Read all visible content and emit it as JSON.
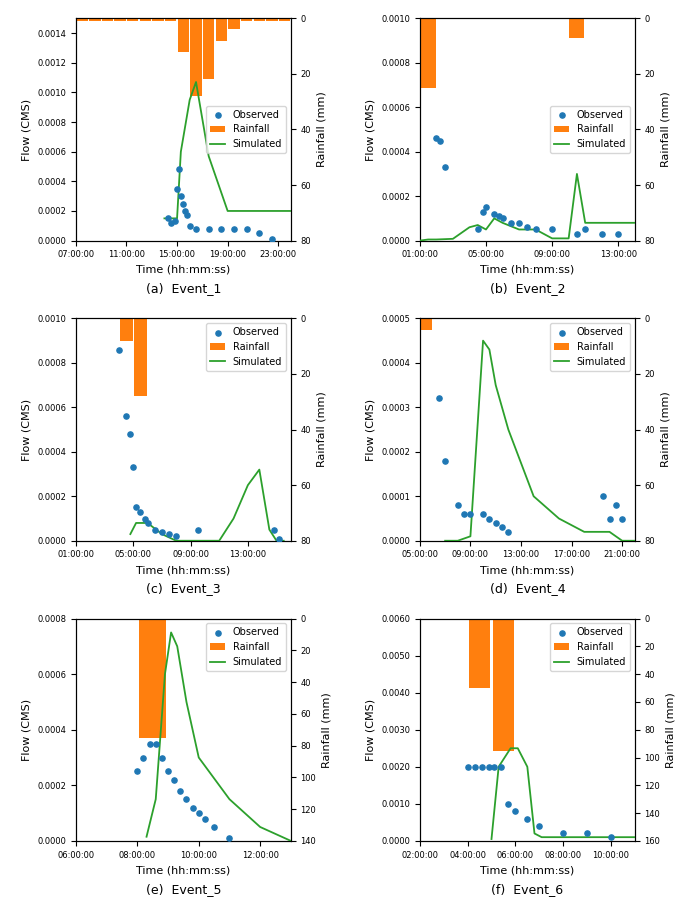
{
  "chart_data": [
    {
      "type": "line",
      "title": "(a)  Event_1",
      "x_label": "Time (hh:mm:ss)",
      "y_label": "Flow (CMS)",
      "y2_label": "Rainfall (mm)",
      "xlim": [
        0,
        17
      ],
      "xticks": [
        {
          "value": 0,
          "label": "07:00:00"
        },
        {
          "value": 4,
          "label": "11:00:00"
        },
        {
          "value": 8,
          "label": "15:00:00"
        },
        {
          "value": 12,
          "label": "19:00:00"
        },
        {
          "value": 16,
          "label": "23:00:00"
        }
      ],
      "ylim": [
        0,
        0.0015
      ],
      "yticks": [
        {
          "value": 0.0,
          "label": "0.0000"
        },
        0.0002,
        0.0004,
        0.0006,
        0.0008,
        {
          "value": 0.001,
          "label": "0.0010"
        },
        0.0012,
        0.0014
      ],
      "y2lim": [
        80,
        0
      ],
      "y2ticks": [
        0,
        20,
        40,
        60,
        80
      ],
      "legend": "center right",
      "grid": false,
      "series": [
        {
          "name": "Observed",
          "type": "scatter",
          "x": [
            7.3,
            7.5,
            7.8,
            8.0,
            8.15,
            8.3,
            8.45,
            8.6,
            8.75,
            9.0,
            9.5,
            10.5,
            11.5,
            12.5,
            13.5,
            14.5,
            15.5
          ],
          "values": [
            0.00015,
            0.00012,
            0.00013,
            0.00035,
            0.00048,
            0.0003,
            0.00025,
            0.0002,
            0.00017,
            0.0001,
            8e-05,
            8e-05,
            8e-05,
            8e-05,
            8e-05,
            5e-05,
            1e-05
          ]
        },
        {
          "name": "Rainfall",
          "type": "bar",
          "axis": "y2",
          "x": [
            0.5,
            1.5,
            2.5,
            3.5,
            4.5,
            5.5,
            6.5,
            7.5,
            8.5,
            9.5,
            10.5,
            11.5,
            12.5,
            13.5,
            14.5,
            15.5,
            16.5
          ],
          "values": [
            1,
            1,
            1,
            1,
            1,
            1,
            1,
            1,
            12,
            28,
            22,
            8,
            4,
            1,
            1,
            1,
            1
          ]
        },
        {
          "name": "Simulated",
          "type": "line",
          "x": [
            7.0,
            7.5,
            8.0,
            8.3,
            9.0,
            9.5,
            10.5,
            12.0,
            14.0,
            16.0,
            17.0
          ],
          "values": [
            0.00015,
            0.00015,
            0.00015,
            0.0006,
            0.00095,
            0.00107,
            0.00057,
            0.0002,
            0.0002,
            0.0002,
            0.0002
          ]
        }
      ]
    },
    {
      "type": "line",
      "title": "(b)  Event_2",
      "x_label": "Time (hh:mm:ss)",
      "y_label": "Flow (CMS)",
      "y2_label": "Rainfall (mm)",
      "xlim": [
        0,
        13
      ],
      "xticks": [
        {
          "value": 0,
          "label": "01:00:00"
        },
        {
          "value": 4,
          "label": "05:00:00"
        },
        {
          "value": 8,
          "label": "09:00:00"
        },
        {
          "value": 12,
          "label": "13:00:00"
        }
      ],
      "ylim": [
        0,
        0.001
      ],
      "yticks": [
        {
          "value": 0.0,
          "label": "0.0000"
        },
        0.0002,
        0.0004,
        0.0006,
        0.0008,
        {
          "value": 0.001,
          "label": "0.0010"
        }
      ],
      "y2lim": [
        80,
        0
      ],
      "y2ticks": [
        0,
        20,
        40,
        60,
        80
      ],
      "legend": "center right",
      "grid": false,
      "series": [
        {
          "name": "Observed",
          "type": "scatter",
          "x": [
            1.0,
            1.2,
            1.5,
            3.5,
            3.8,
            4.0,
            4.5,
            4.8,
            5.0,
            5.5,
            6.0,
            6.5,
            7.0,
            8.0,
            9.5,
            10.0,
            11.0,
            12.0
          ],
          "values": [
            0.00046,
            0.00045,
            0.00033,
            5e-05,
            0.00013,
            0.00015,
            0.00012,
            0.00011,
            0.0001,
            8e-05,
            8e-05,
            6e-05,
            5e-05,
            5e-05,
            3e-05,
            5e-05,
            3e-05,
            3e-05
          ]
        },
        {
          "name": "Rainfall",
          "type": "bar",
          "axis": "y2",
          "x": [
            0.5,
            1.5,
            2.5,
            3.5,
            4.5,
            5.5,
            6.5,
            7.5,
            8.5,
            9.5,
            10.5,
            11.5,
            12.5
          ],
          "values": [
            25,
            0,
            0,
            0,
            0,
            0,
            0,
            0,
            0,
            7,
            0,
            0,
            0
          ]
        },
        {
          "name": "Simulated",
          "type": "line",
          "x": [
            0,
            0.5,
            1.0,
            2.0,
            3.0,
            3.5,
            4.0,
            4.5,
            5.0,
            6.0,
            7.0,
            8.0,
            9.0,
            9.5,
            10.0,
            11.0,
            12.0,
            13.0
          ],
          "values": [
            0.0,
            5e-06,
            5e-06,
            8e-06,
            6e-05,
            7e-05,
            5e-05,
            0.0001,
            8e-05,
            5e-05,
            5e-05,
            1e-05,
            1e-05,
            0.0003,
            8e-05,
            8e-05,
            8e-05,
            8e-05
          ]
        }
      ]
    },
    {
      "type": "line",
      "title": "(c)  Event_3",
      "x_label": "Time (hh:mm:ss)",
      "y_label": "Flow (CMS)",
      "y2_label": "Rainfall (mm)",
      "xlim": [
        0,
        15
      ],
      "xticks": [
        {
          "value": 0,
          "label": "01:00:00"
        },
        {
          "value": 4,
          "label": "05:00:00"
        },
        {
          "value": 8,
          "label": "09:00:00"
        },
        {
          "value": 12,
          "label": "13:00:00"
        }
      ],
      "ylim": [
        0,
        0.001
      ],
      "yticks": [
        {
          "value": 0.0,
          "label": "0.0000"
        },
        0.0002,
        0.0004,
        0.0006,
        0.0008,
        {
          "value": 0.001,
          "label": "0.0010"
        }
      ],
      "y2lim": [
        80,
        0
      ],
      "y2ticks": [
        0,
        20,
        40,
        60,
        80
      ],
      "legend": "upper right",
      "grid": false,
      "series": [
        {
          "name": "Observed",
          "type": "scatter",
          "x": [
            3.0,
            3.5,
            3.8,
            4.0,
            4.2,
            4.5,
            4.8,
            5.0,
            5.5,
            6.0,
            6.5,
            7.0,
            8.5,
            13.8,
            14.2
          ],
          "values": [
            0.00086,
            0.00056,
            0.00048,
            0.00033,
            0.00015,
            0.00013,
            0.0001,
            8e-05,
            5e-05,
            4e-05,
            3e-05,
            2e-05,
            5e-05,
            5e-05,
            1e-05
          ]
        },
        {
          "name": "Rainfall",
          "type": "bar",
          "axis": "y2",
          "x": [
            3.5,
            4.5,
            5.5,
            6.5,
            7.5,
            8.5
          ],
          "values": [
            8,
            28,
            0,
            0,
            0,
            0
          ]
        },
        {
          "name": "Simulated",
          "type": "line",
          "x": [
            3.8,
            4.2,
            5.0,
            6.0,
            7.0,
            8.0,
            9.0,
            10.0,
            11.0,
            12.0,
            12.8,
            13.5,
            14.0,
            14.5
          ],
          "values": [
            3e-05,
            8e-05,
            8e-05,
            3e-05,
            0.0,
            0.0,
            0.0,
            0.0,
            0.0001,
            0.00025,
            0.00032,
            5e-05,
            0.0,
            0.0
          ]
        }
      ]
    },
    {
      "type": "line",
      "title": "(d)  Event_4",
      "x_label": "Time (hh:mm:ss)",
      "y_label": "Flow (CMS)",
      "y2_label": "Rainfall (mm)",
      "xlim": [
        0,
        17
      ],
      "xticks": [
        {
          "value": 0,
          "label": "05:00:00"
        },
        {
          "value": 4,
          "label": "09:00:00"
        },
        {
          "value": 8,
          "label": "13:00:00"
        },
        {
          "value": 12,
          "label": "17:00:00"
        },
        {
          "value": 16,
          "label": "21:00:00"
        }
      ],
      "ylim": [
        0,
        0.0005
      ],
      "yticks": [
        {
          "value": 0.0,
          "label": "0.0000"
        },
        0.0001,
        0.0002,
        0.0003,
        0.0004,
        0.0005
      ],
      "y2lim": [
        80,
        0
      ],
      "y2ticks": [
        0,
        20,
        40,
        60,
        80
      ],
      "legend": "upper right",
      "grid": false,
      "series": [
        {
          "name": "Observed",
          "type": "scatter",
          "x": [
            1.5,
            2.0,
            3.0,
            3.5,
            4.0,
            5.0,
            5.5,
            6.0,
            6.5,
            7.0,
            14.5,
            15.0,
            15.5,
            16.0
          ],
          "values": [
            0.00032,
            0.00018,
            8e-05,
            6e-05,
            6e-05,
            6e-05,
            5e-05,
            4e-05,
            3e-05,
            2e-05,
            0.0001,
            5e-05,
            8e-05,
            5e-05
          ]
        },
        {
          "name": "Rainfall",
          "type": "bar",
          "axis": "y2",
          "x": [
            0.5,
            1.5
          ],
          "values": [
            4,
            0
          ]
        },
        {
          "name": "Simulated",
          "type": "line",
          "x": [
            2.0,
            3.0,
            4.0,
            5.0,
            5.5,
            6.0,
            7.0,
            9.0,
            11.0,
            13.0,
            15.0,
            16.0,
            17.0
          ],
          "values": [
            0.0,
            0.0,
            1e-05,
            0.00045,
            0.00043,
            0.00035,
            0.00025,
            0.0001,
            5e-05,
            2e-05,
            2e-05,
            0.0,
            0.0
          ]
        }
      ]
    },
    {
      "type": "line",
      "title": "(e)  Event_5",
      "x_label": "Time (hh:mm:ss)",
      "y_label": "Flow (CMS)",
      "y2_label": "Rainfall (mm)",
      "xlim": [
        0,
        7
      ],
      "xticks": [
        {
          "value": 0,
          "label": "06:00:00"
        },
        {
          "value": 2,
          "label": "08:00:00"
        },
        {
          "value": 4,
          "label": "10:00:00"
        },
        {
          "value": 6,
          "label": "12:00:00"
        }
      ],
      "ylim": [
        0,
        0.0008
      ],
      "yticks": [
        {
          "value": 0.0,
          "label": "0.0000"
        },
        0.0002,
        0.0004,
        0.0006,
        0.0008
      ],
      "y2lim": [
        140,
        0
      ],
      "y2ticks": [
        0,
        20,
        40,
        60,
        80,
        100,
        120,
        140
      ],
      "legend": "upper right",
      "grid": false,
      "series": [
        {
          "name": "Observed",
          "type": "scatter",
          "x": [
            2.0,
            2.2,
            2.4,
            2.6,
            2.8,
            3.0,
            3.2,
            3.4,
            3.6,
            3.8,
            4.0,
            4.2,
            4.5,
            5.0
          ],
          "values": [
            0.00025,
            0.0003,
            0.00035,
            0.00035,
            0.0003,
            0.00025,
            0.00022,
            0.00018,
            0.00015,
            0.00012,
            0.0001,
            8e-05,
            5e-05,
            1e-05
          ]
        },
        {
          "name": "Rainfall",
          "type": "bar",
          "axis": "y2",
          "x": [
            1.5,
            2.5
          ],
          "values": [
            0,
            75
          ]
        },
        {
          "name": "Simulated",
          "type": "line",
          "x": [
            2.3,
            2.6,
            2.9,
            3.1,
            3.3,
            3.6,
            4.0,
            5.0,
            6.0,
            7.0
          ],
          "values": [
            1.5e-05,
            0.00015,
            0.0006,
            0.00075,
            0.0007,
            0.0005,
            0.0003,
            0.00015,
            5e-05,
            0.0
          ]
        }
      ]
    },
    {
      "type": "line",
      "title": "(f)  Event_6",
      "x_label": "Time (hh:mm:ss)",
      "y_label": "Flow (CMS)",
      "y2_label": "Rainfall (mm)",
      "xlim": [
        0,
        9
      ],
      "xticks": [
        {
          "value": 0,
          "label": "02:00:00"
        },
        {
          "value": 2,
          "label": "04:00:00"
        },
        {
          "value": 4,
          "label": "06:00:00"
        },
        {
          "value": 6,
          "label": "08:00:00"
        },
        {
          "value": 8,
          "label": "10:00:00"
        }
      ],
      "ylim": [
        0,
        0.006
      ],
      "yticks": [
        {
          "value": 0.0,
          "label": "0.0000"
        },
        {
          "value": 0.001,
          "label": "0.0010"
        },
        {
          "value": 0.002,
          "label": "0.0020"
        },
        {
          "value": 0.003,
          "label": "0.0030"
        },
        {
          "value": 0.004,
          "label": "0.0040"
        },
        {
          "value": 0.005,
          "label": "0.0050"
        },
        {
          "value": 0.006,
          "label": "0.0060"
        }
      ],
      "y2lim": [
        160,
        0
      ],
      "y2ticks": [
        0,
        20,
        40,
        60,
        80,
        100,
        120,
        140,
        160
      ],
      "legend": "upper right",
      "grid": false,
      "series": [
        {
          "name": "Observed",
          "type": "scatter",
          "x": [
            2.0,
            2.3,
            2.6,
            2.9,
            3.1,
            3.4,
            3.7,
            4.0,
            4.5,
            5.0,
            6.0,
            7.0,
            8.0
          ],
          "values": [
            0.002,
            0.002,
            0.002,
            0.002,
            0.002,
            0.002,
            0.001,
            0.0008,
            0.0006,
            0.0004,
            0.0002,
            0.0002,
            0.0001
          ]
        },
        {
          "name": "Rainfall",
          "type": "bar",
          "axis": "y2",
          "x": [
            1.5,
            2.5,
            3.5
          ],
          "values": [
            0,
            50,
            95
          ]
        },
        {
          "name": "Simulated",
          "type": "line",
          "x": [
            3.0,
            3.3,
            3.8,
            4.1,
            4.5,
            4.8,
            5.1,
            6.0,
            7.0,
            8.0,
            9.0
          ],
          "values": [
            5e-05,
            0.002,
            0.0025,
            0.0025,
            0.002,
            0.0002,
            0.0001,
            0.0001,
            0.0001,
            0.0001,
            0.0001
          ]
        }
      ]
    }
  ]
}
